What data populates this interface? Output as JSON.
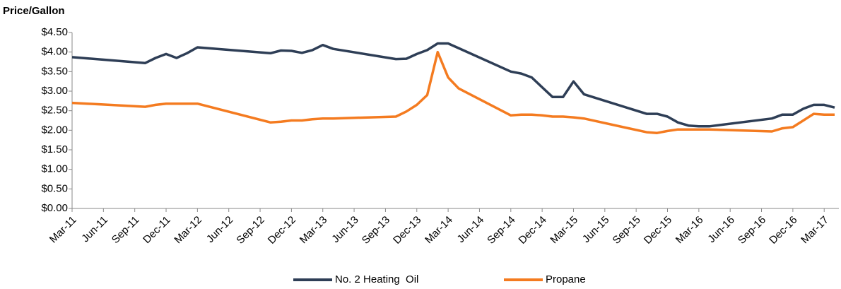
{
  "chart_data": {
    "type": "line",
    "title": "Price/Gallon",
    "x": [
      "Mar-11",
      "Oct-11",
      "Nov-11",
      "Dec-11",
      "Jan-12",
      "Feb-12",
      "Mar-12",
      "Oct-12",
      "Nov-12",
      "Dec-12",
      "Jan-13",
      "Feb-13",
      "Mar-13",
      "Apr-13",
      "Oct-13",
      "Nov-13",
      "Dec-13",
      "Jan-14",
      "Feb-14",
      "Mar-14",
      "Apr-14",
      "Sep-14",
      "Oct-14",
      "Nov-14",
      "Dec-14",
      "Jan-15",
      "Feb-15",
      "Mar-15",
      "Apr-15",
      "Oct-15",
      "Nov-15",
      "Dec-15",
      "Jan-16",
      "Feb-16",
      "Mar-16",
      "Apr-16",
      "Oct-16",
      "Nov-16",
      "Dec-16",
      "Jan-17",
      "Feb-17",
      "Mar-17",
      "Apr-17"
    ],
    "series": [
      {
        "name": "No. 2 Heating  Oil",
        "color": "#2e3e56",
        "values": [
          3.87,
          3.72,
          3.85,
          3.95,
          3.85,
          3.97,
          4.12,
          3.97,
          4.04,
          4.03,
          3.98,
          4.05,
          4.18,
          4.08,
          3.82,
          3.83,
          3.95,
          4.05,
          4.22,
          4.22,
          4.1,
          3.5,
          3.45,
          3.35,
          3.1,
          2.85,
          2.85,
          3.25,
          2.92,
          2.42,
          2.42,
          2.35,
          2.2,
          2.12,
          2.1,
          2.1,
          2.3,
          2.4,
          2.4,
          2.55,
          2.65,
          2.65,
          2.58
        ]
      },
      {
        "name": "Propane",
        "color": "#f47b20",
        "values": [
          2.7,
          2.6,
          2.65,
          2.68,
          2.68,
          2.68,
          2.68,
          2.2,
          2.22,
          2.25,
          2.25,
          2.28,
          2.3,
          2.3,
          2.35,
          2.48,
          2.65,
          2.9,
          4.0,
          3.35,
          3.07,
          2.38,
          2.4,
          2.4,
          2.38,
          2.35,
          2.35,
          2.33,
          2.3,
          1.95,
          1.93,
          1.98,
          2.02,
          2.02,
          2.02,
          2.02,
          1.97,
          2.05,
          2.08,
          2.25,
          2.42,
          2.4,
          2.4
        ]
      }
    ],
    "xlim": [
      "Mar-11",
      "Apr-17"
    ],
    "xticks": [
      "Mar-11",
      "Jun-11",
      "Sep-11",
      "Dec-11",
      "Mar-12",
      "Jun-12",
      "Sep-12",
      "Dec-12",
      "Mar-13",
      "Jun-13",
      "Sep-13",
      "Dec-13",
      "Mar-14",
      "Jun-14",
      "Sep-14",
      "Dec-14",
      "Mar-15",
      "Jun-15",
      "Sep-15",
      "Dec-15",
      "Mar-16",
      "Jun-16",
      "Sep-16",
      "Dec-16",
      "Mar-17"
    ],
    "ylim": [
      0,
      4.5
    ],
    "yticks": [
      {
        "value": 0,
        "label": "$0.00"
      },
      {
        "value": 0.5,
        "label": "$0.50"
      },
      {
        "value": 1,
        "label": "$1.00"
      },
      {
        "value": 1.5,
        "label": "$1.50"
      },
      {
        "value": 2,
        "label": "$2.00"
      },
      {
        "value": 2.5,
        "label": "$2.50"
      },
      {
        "value": 3,
        "label": "$3.00"
      },
      {
        "value": 3.5,
        "label": "$3.50"
      },
      {
        "value": 4,
        "label": "$4.00"
      },
      {
        "value": 4.5,
        "label": "$4.50"
      }
    ],
    "grid": false,
    "legend": "bottom"
  }
}
